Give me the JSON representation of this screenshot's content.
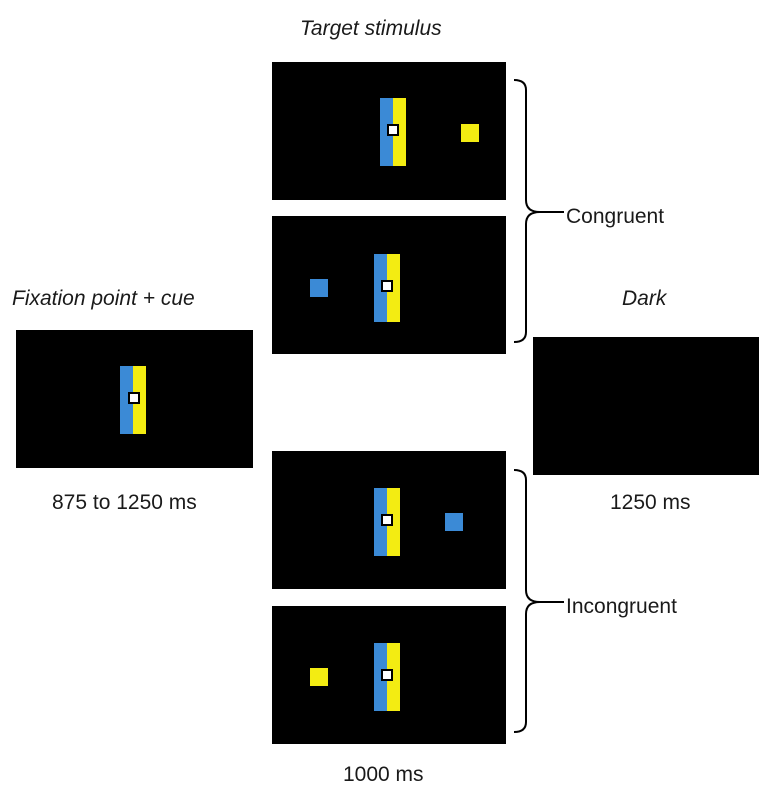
{
  "colors": {
    "blue": "#3b8ad6",
    "yellow": "#f3ec12",
    "screen": "#000000",
    "fixation": "#ffffff"
  },
  "labels": {
    "target_stimulus": "Target stimulus",
    "fixation_cue": "Fixation point + cue",
    "dark": "Dark",
    "congruent": "Congruent",
    "incongruent": "Incongruent",
    "time_fixation": "875 to 1250 ms",
    "time_target": "1000 ms",
    "time_dark": "1250 ms"
  },
  "panels": [
    {
      "name": "panel-fixation-cue",
      "bar": true,
      "target": null
    },
    {
      "name": "panel-congruent-right",
      "bar": true,
      "target": {
        "side": "right",
        "color": "yellow"
      }
    },
    {
      "name": "panel-congruent-left",
      "bar": true,
      "target": {
        "side": "left",
        "color": "blue"
      }
    },
    {
      "name": "panel-incongruent-right",
      "bar": true,
      "target": {
        "side": "right",
        "color": "blue"
      }
    },
    {
      "name": "panel-incongruent-left",
      "bar": true,
      "target": {
        "side": "left",
        "color": "yellow"
      }
    },
    {
      "name": "panel-dark",
      "bar": false,
      "target": null
    }
  ]
}
